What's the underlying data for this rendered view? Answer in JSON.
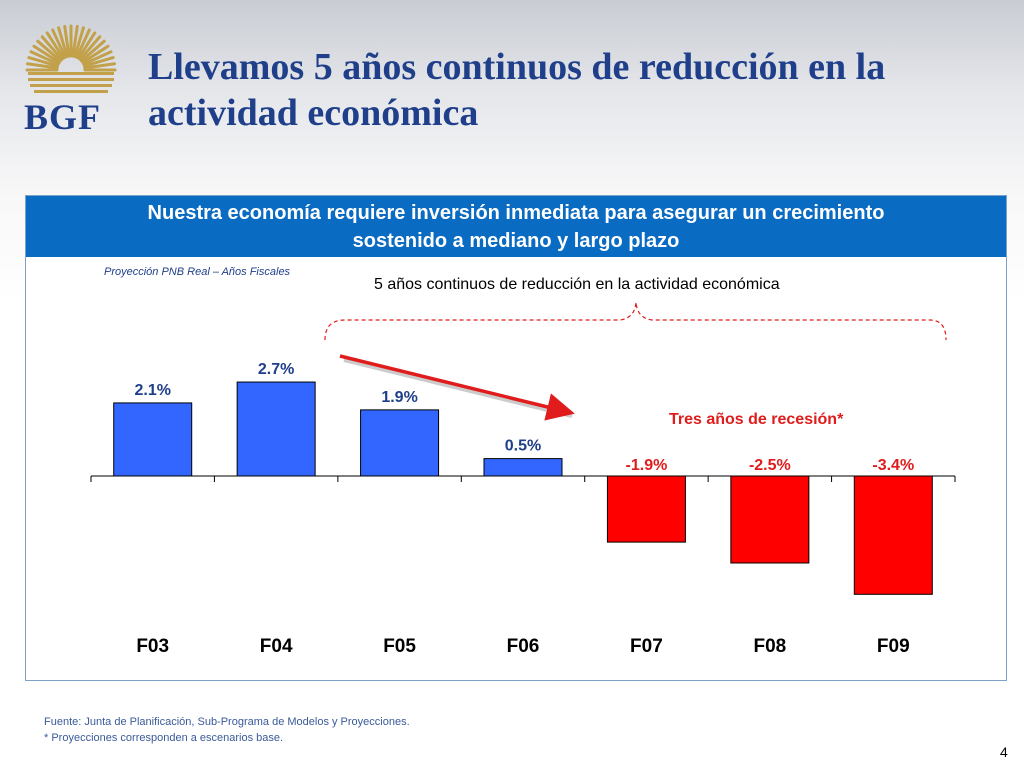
{
  "header": {
    "logo_text": "BGF",
    "title": "Llevamos 5 años continuos de reducción en la actividad económica"
  },
  "banner": {
    "line1": "Nuestra economía requiere inversión inmediata para asegurar un crecimiento",
    "line2": "sostenido a mediano y largo plazo"
  },
  "colors": {
    "title_blue": "#1f3f8a",
    "banner_blue": "#0a6bc2",
    "positive_bar": "#3366ff",
    "negative_bar": "#ff0000",
    "positive_label": "#1f3f8a",
    "negative_label": "#e01c1c"
  },
  "chart_data": {
    "type": "bar",
    "subtitle": "Proyección PNB Real – Años Fiscales",
    "title": "5 años continuos de reducción en la actividad económica",
    "categories": [
      "F03",
      "F04",
      "F05",
      "F06",
      "F07",
      "F08",
      "F09"
    ],
    "values": [
      2.1,
      2.7,
      1.9,
      0.5,
      -1.9,
      -2.5,
      -3.4
    ],
    "value_labels": [
      "2.1%",
      "2.7%",
      "1.9%",
      "0.5%",
      "-1.9%",
      "-2.5%",
      "-3.4%"
    ],
    "ylim": [
      -4,
      3
    ],
    "grid": false,
    "annotations": {
      "recession": "Tres años de recesión*"
    }
  },
  "footer": {
    "source": "Fuente: Junta de Planificación, Sub-Programa de Modelos y Proyecciones.",
    "note": "* Proyecciones corresponden a escenarios base.",
    "page": "4"
  }
}
